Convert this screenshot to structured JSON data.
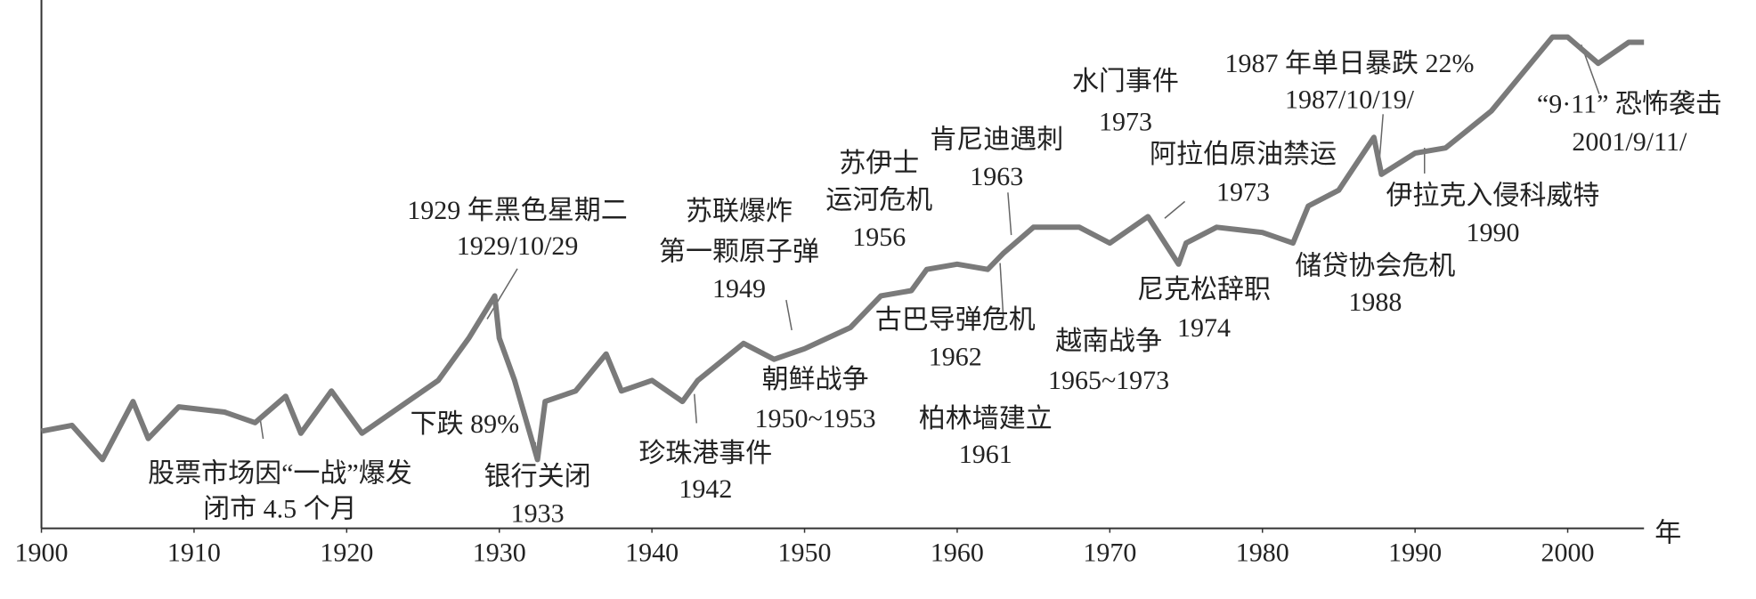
{
  "chart_data": {
    "type": "line",
    "x_label": "年",
    "x": [
      1900,
      1902,
      1904,
      1906,
      1907,
      1909,
      1912,
      1914,
      1916,
      1917,
      1919,
      1921,
      1924,
      1926,
      1928,
      1929.7,
      1930,
      1931,
      1932.5,
      1933,
      1935,
      1937,
      1938,
      1940,
      1942,
      1943,
      1946,
      1948,
      1950,
      1953,
      1955,
      1957,
      1958,
      1960,
      1962,
      1963,
      1965,
      1966,
      1968,
      1970,
      1972.5,
      1974.5,
      1975,
      1977,
      1980,
      1982,
      1983,
      1985,
      1987.3,
      1987.8,
      1990,
      1992,
      1995,
      1997,
      1999,
      2000,
      2002,
      2004,
      2005
    ],
    "values": [
      18.4,
      19.5,
      13,
      24,
      17,
      23,
      22,
      20,
      25,
      18,
      26,
      18,
      24,
      28,
      36,
      44,
      36,
      28,
      13,
      24,
      26,
      33,
      26,
      28,
      24,
      28,
      35,
      32,
      34,
      38,
      44,
      45,
      49,
      50,
      49,
      52,
      57,
      57,
      57,
      54,
      59,
      50,
      54,
      57,
      56,
      54,
      61,
      64,
      74,
      67,
      71,
      72,
      79,
      86,
      93,
      93,
      88,
      92,
      92
    ],
    "color": "#7a7a7a",
    "xlim": [
      1900,
      2005
    ],
    "ylim": [
      0,
      100
    ],
    "xticks": [
      1900,
      1910,
      1920,
      1930,
      1940,
      1950,
      1960,
      1970,
      1980,
      1990,
      2000
    ],
    "annotations": [
      {
        "lines": [
          "股票市场因“一战”爆发",
          "闭市 4.5 个月"
        ]
      },
      {
        "lines": [
          "下跌 89%"
        ]
      },
      {
        "lines": [
          "银行关闭",
          "1933"
        ]
      },
      {
        "lines": [
          "1929 年黑色星期二",
          "1929/10/29"
        ]
      },
      {
        "lines": [
          "珍珠港事件",
          "1942"
        ]
      },
      {
        "lines": [
          "苏联爆炸",
          "第一颗原子弹",
          "1949"
        ]
      },
      {
        "lines": [
          "朝鲜战争",
          "1950~1953"
        ]
      },
      {
        "lines": [
          "苏伊士",
          "运河危机",
          "1956"
        ]
      },
      {
        "lines": [
          "肯尼迪遇刺",
          "1963"
        ]
      },
      {
        "lines": [
          "古巴导弹危机",
          "1962"
        ]
      },
      {
        "lines": [
          "柏林墙建立",
          "1961"
        ]
      },
      {
        "lines": [
          "越南战争",
          "1965~1973"
        ]
      },
      {
        "lines": [
          "水门事件",
          "1973"
        ]
      },
      {
        "lines": [
          "阿拉伯原油禁运",
          "1973"
        ]
      },
      {
        "lines": [
          "尼克松辞职",
          "1974"
        ]
      },
      {
        "lines": [
          "1987 年单日暴跌 22%",
          "1987/10/19/"
        ]
      },
      {
        "lines": [
          "储贷协会危机",
          "1988"
        ]
      },
      {
        "lines": [
          "伊拉克入侵科威特",
          "1990"
        ]
      },
      {
        "lines": [
          "“9·11” 恐怖袭击",
          "2001/9/11/"
        ]
      }
    ]
  }
}
